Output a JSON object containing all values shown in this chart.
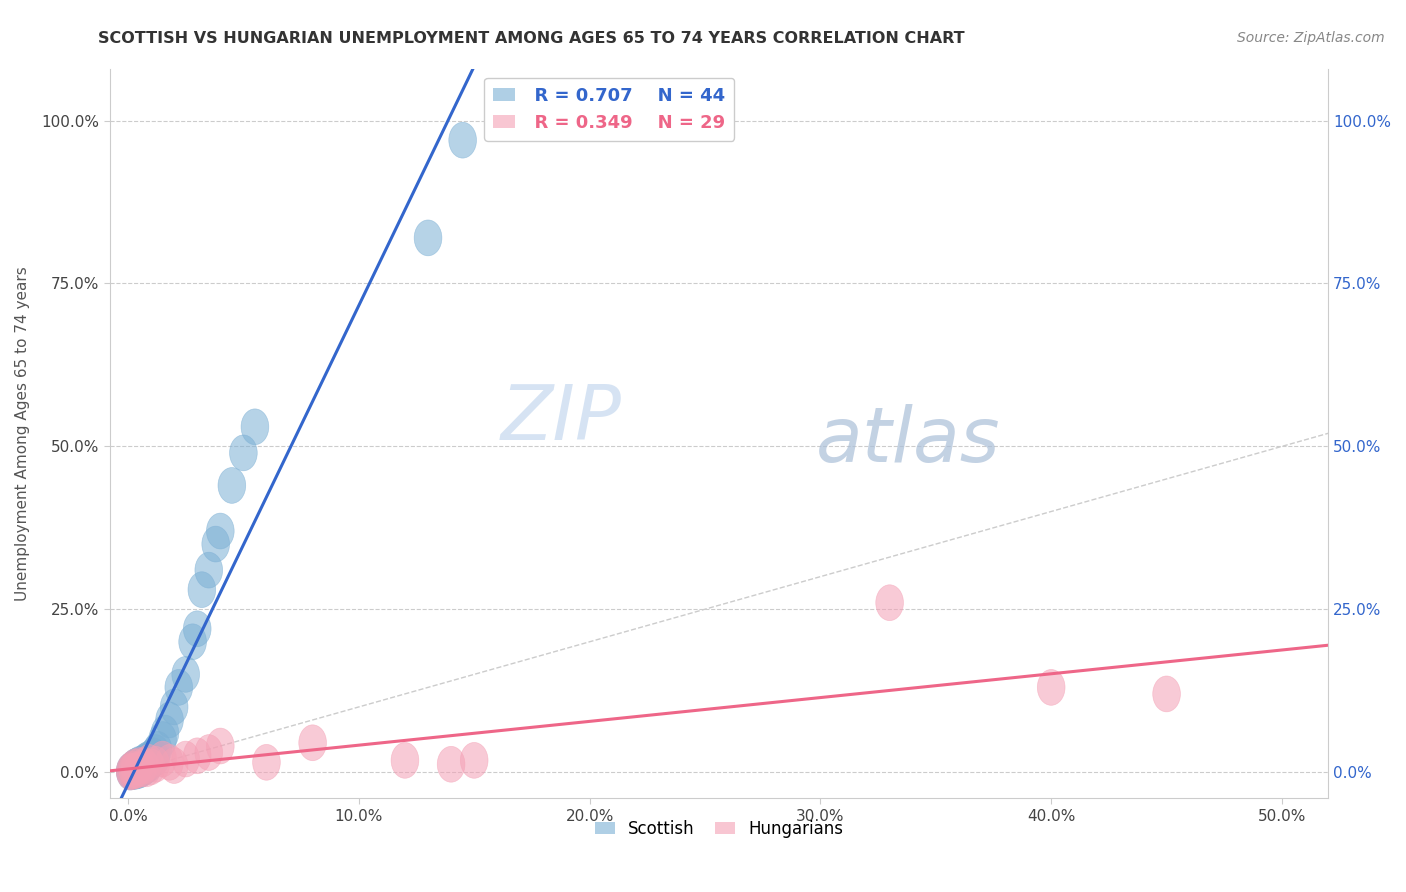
{
  "title": "SCOTTISH VS HUNGARIAN UNEMPLOYMENT AMONG AGES 65 TO 74 YEARS CORRELATION CHART",
  "source": "Source: ZipAtlas.com",
  "ylabel": "Unemployment Among Ages 65 to 74 years",
  "xlim": [
    -0.008,
    0.52
  ],
  "ylim": [
    -0.04,
    1.08
  ],
  "x_tick_vals": [
    0.0,
    0.1,
    0.2,
    0.3,
    0.4,
    0.5
  ],
  "x_tick_labels": [
    "0.0%",
    "10.0%",
    "20.0%",
    "30.0%",
    "40.0%",
    "50.0%"
  ],
  "y_tick_vals": [
    0.0,
    0.25,
    0.5,
    0.75,
    1.0
  ],
  "y_tick_labels": [
    "0.0%",
    "25.0%",
    "50.0%",
    "75.0%",
    "100.0%"
  ],
  "scottish_color": "#7BAFD4",
  "hungarian_color": "#F4A0B5",
  "scottish_line_color": "#3366CC",
  "hungarian_line_color": "#EE6688",
  "diagonal_color": "#CCCCCC",
  "watermark_color": "#DDEEFF",
  "legend_r_scottish": "R = 0.707",
  "legend_n_scottish": "N = 44",
  "legend_r_hungarian": "R = 0.349",
  "legend_n_hungarian": "N = 29",
  "scottish_x": [
    0.001,
    0.001,
    0.002,
    0.002,
    0.002,
    0.003,
    0.003,
    0.003,
    0.004,
    0.004,
    0.004,
    0.005,
    0.005,
    0.005,
    0.006,
    0.006,
    0.007,
    0.007,
    0.008,
    0.008,
    0.009,
    0.009,
    0.01,
    0.011,
    0.012,
    0.012,
    0.013,
    0.015,
    0.016,
    0.018,
    0.02,
    0.022,
    0.025,
    0.028,
    0.03,
    0.032,
    0.035,
    0.038,
    0.04,
    0.045,
    0.05,
    0.055,
    0.13,
    0.145
  ],
  "scottish_y": [
    0.0,
    0.002,
    0.001,
    0.003,
    0.005,
    0.001,
    0.003,
    0.008,
    0.002,
    0.005,
    0.01,
    0.003,
    0.007,
    0.012,
    0.005,
    0.01,
    0.007,
    0.015,
    0.01,
    0.018,
    0.012,
    0.02,
    0.018,
    0.025,
    0.022,
    0.03,
    0.035,
    0.05,
    0.06,
    0.08,
    0.1,
    0.13,
    0.15,
    0.2,
    0.22,
    0.28,
    0.31,
    0.35,
    0.37,
    0.44,
    0.49,
    0.53,
    0.82,
    0.97
  ],
  "hungarian_x": [
    0.001,
    0.001,
    0.002,
    0.002,
    0.003,
    0.003,
    0.004,
    0.005,
    0.006,
    0.007,
    0.008,
    0.009,
    0.01,
    0.012,
    0.015,
    0.018,
    0.02,
    0.025,
    0.03,
    0.035,
    0.04,
    0.06,
    0.08,
    0.12,
    0.14,
    0.15,
    0.33,
    0.4,
    0.45
  ],
  "hungarian_y": [
    0.0,
    0.002,
    0.001,
    0.005,
    0.002,
    0.008,
    0.003,
    0.01,
    0.005,
    0.01,
    0.005,
    0.015,
    0.008,
    0.012,
    0.02,
    0.015,
    0.01,
    0.02,
    0.025,
    0.03,
    0.04,
    0.015,
    0.045,
    0.018,
    0.012,
    0.018,
    0.26,
    0.13,
    0.12
  ]
}
